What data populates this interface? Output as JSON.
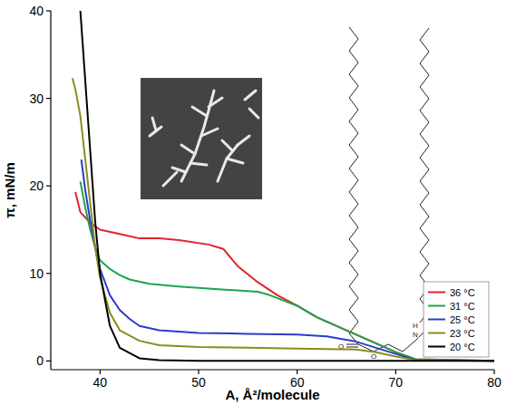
{
  "chart_data": {
    "type": "line",
    "x_label": "A, Å²/molecule",
    "y_label": "π, mN/m",
    "xlim": [
      35,
      80
    ],
    "ylim": [
      -1,
      40
    ],
    "xticks": [
      40,
      50,
      60,
      70,
      80
    ],
    "yticks": [
      0,
      10,
      20,
      30,
      40
    ],
    "grid": false,
    "legend": "lower right",
    "annotations": [
      "O",
      "O",
      "O",
      "N",
      "H"
    ],
    "series": [
      {
        "name": "36 °C",
        "color": "#e3222b",
        "x": [
          80,
          72,
          70,
          67,
          65,
          62,
          60,
          58,
          56,
          54,
          52.5,
          51,
          48,
          46,
          44,
          42,
          40,
          39,
          38,
          37.5
        ],
        "values": [
          0,
          0.2,
          1,
          2.5,
          3.5,
          5,
          6.3,
          7.5,
          9,
          10.8,
          12.8,
          13.3,
          13.8,
          14,
          14,
          14.5,
          15,
          15.8,
          17,
          19.3
        ]
      },
      {
        "name": "31 °C",
        "color": "#1aa64a",
        "x": [
          80,
          72,
          70,
          67,
          65,
          62,
          60,
          57,
          56,
          52,
          48,
          45,
          43,
          42,
          41,
          40,
          39.5,
          39,
          38.5,
          38
        ],
        "values": [
          0,
          0.2,
          1,
          2.5,
          3.5,
          5,
          6.3,
          7.6,
          7.9,
          8.2,
          8.5,
          8.8,
          9.3,
          9.8,
          10.5,
          11.5,
          13,
          15,
          17.5,
          20.5
        ]
      },
      {
        "name": "25 °C",
        "color": "#2b3cc9",
        "x": [
          80,
          72,
          70,
          68,
          66,
          63,
          60,
          55,
          50,
          46,
          44,
          43,
          42,
          41,
          40,
          39.5,
          39,
          38.5,
          38.1
        ],
        "values": [
          0,
          0.1,
          0.8,
          1.5,
          2.2,
          2.8,
          3,
          3.1,
          3.2,
          3.5,
          4,
          4.8,
          5.8,
          7.5,
          10.5,
          13,
          16,
          19.5,
          23
        ]
      },
      {
        "name": "23 °C",
        "color": "#8c8c1e",
        "x": [
          80,
          72,
          70,
          68,
          66,
          60,
          55,
          50,
          46,
          44,
          42,
          41,
          40,
          39.5,
          39,
          38.5,
          38,
          37.5,
          37.2
        ],
        "values": [
          0,
          0.1,
          0.5,
          1,
          1.3,
          1.4,
          1.5,
          1.6,
          1.8,
          2.3,
          3.5,
          5.5,
          9.5,
          13,
          18,
          23,
          28,
          31,
          32.3
        ]
      },
      {
        "name": "20 °C",
        "color": "#000000",
        "x": [
          80,
          60,
          50,
          46,
          44,
          42,
          41,
          40,
          39.5,
          39,
          38.5,
          38
        ],
        "values": [
          0,
          0,
          0,
          0.1,
          0.3,
          1.5,
          4,
          10,
          16,
          24,
          32,
          40
        ]
      }
    ]
  }
}
